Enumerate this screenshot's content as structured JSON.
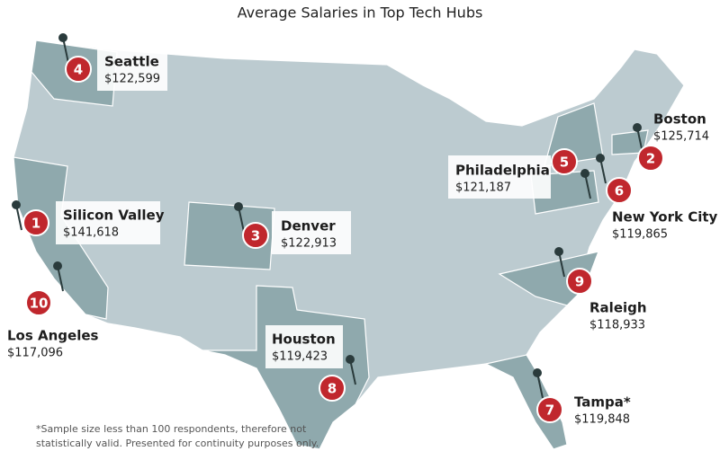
{
  "title": "Average Salaries in Top Tech Hubs",
  "hubs": [
    {
      "rank": "1",
      "city": "Silicon Valley",
      "salary": "$141,618"
    },
    {
      "rank": "2",
      "city": "Boston",
      "salary": "$125,714"
    },
    {
      "rank": "3",
      "city": "Denver",
      "salary": "$122,913"
    },
    {
      "rank": "4",
      "city": "Seattle",
      "salary": "$122,599"
    },
    {
      "rank": "5",
      "city": "Philadelphia",
      "salary": "$121,187"
    },
    {
      "rank": "6",
      "city": "New York City",
      "salary": "$119,865"
    },
    {
      "rank": "7",
      "city": "Tampa*",
      "salary": "$119,848"
    },
    {
      "rank": "8",
      "city": "Houston",
      "salary": "$119,423"
    },
    {
      "rank": "9",
      "city": "Raleigh",
      "salary": "$118,933"
    },
    {
      "rank": "10",
      "city": "Los Angeles",
      "salary": "$117,096"
    }
  ],
  "footnote": [
    "*Sample size less than 100 respondents, therefore not",
    "statistically valid. Presented for continuity purposes only."
  ]
}
